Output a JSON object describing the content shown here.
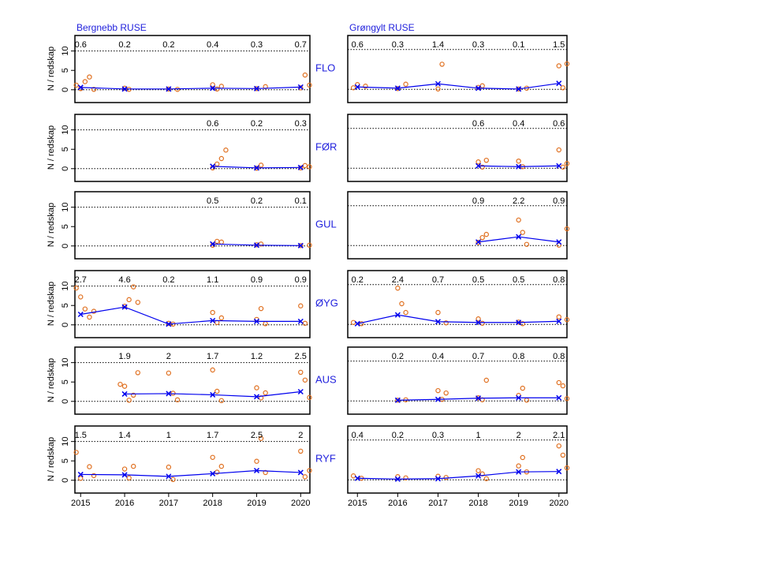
{
  "chart_data": [
    {
      "type": "line",
      "title": "Bergnebb RUSE",
      "row_label": "FLO",
      "ylabel": "N / redskap",
      "xlim": [
        2014.87,
        2020.21
      ],
      "ylim": [
        -3.3,
        14
      ],
      "yticks": [
        0,
        5,
        10
      ],
      "ref_lines": [
        0,
        10
      ],
      "color": "#0000ee",
      "x": [
        2015,
        2016,
        2017,
        2018,
        2019,
        2020
      ],
      "values": [
        0.6,
        0.2,
        0.2,
        0.4,
        0.3,
        0.7
      ],
      "points": {
        "color": "#e07020",
        "x": [
          2014.9,
          2015.0,
          2015.1,
          2015.2,
          2015.3,
          2016.0,
          2016.1,
          2017.0,
          2017.2,
          2018.0,
          2018.1,
          2018.2,
          2019.0,
          2019.2,
          2020.0,
          2020.1,
          2020.2
        ],
        "y": [
          1.2,
          0.3,
          2.1,
          3.3,
          0.1,
          0.4,
          0.1,
          0.2,
          0.1,
          1.3,
          0.2,
          0.9,
          0.3,
          0.8,
          0.5,
          3.8,
          1.2
        ]
      }
    },
    {
      "type": "line",
      "row_label": "FØR",
      "ylabel": "N / redskap",
      "xlim": [
        2014.87,
        2020.21
      ],
      "ylim": [
        -3.3,
        14
      ],
      "yticks": [
        0,
        5,
        10
      ],
      "ref_lines": [
        0,
        10
      ],
      "color": "#0000ee",
      "x": [
        2015,
        2016,
        2017,
        2018,
        2019,
        2020
      ],
      "values": [
        null,
        null,
        null,
        0.6,
        0.2,
        0.3
      ],
      "points": {
        "color": "#e07020",
        "x": [
          2018.0,
          2018.1,
          2018.2,
          2018.3,
          2019.0,
          2019.1,
          2020.0,
          2020.1,
          2020.2
        ],
        "y": [
          0.2,
          1.2,
          2.6,
          4.8,
          0.1,
          0.9,
          0.2,
          0.8,
          0.5
        ]
      }
    },
    {
      "type": "line",
      "row_label": "GUL",
      "ylabel": "N / redskap",
      "xlim": [
        2014.87,
        2020.21
      ],
      "ylim": [
        -3.3,
        14
      ],
      "yticks": [
        0,
        5,
        10
      ],
      "ref_lines": [
        0,
        10
      ],
      "color": "#0000ee",
      "x": [
        2015,
        2016,
        2017,
        2018,
        2019,
        2020
      ],
      "values": [
        null,
        null,
        null,
        0.5,
        0.2,
        0.1
      ],
      "points": {
        "color": "#e07020",
        "x": [
          2018.0,
          2018.1,
          2018.2,
          2019.0,
          2019.1,
          2020.0,
          2020.2
        ],
        "y": [
          0.2,
          1.2,
          1.0,
          0.3,
          0.5,
          0.1,
          0.2
        ]
      }
    },
    {
      "type": "line",
      "row_label": "ØYG",
      "ylabel": "N / redskap",
      "xlim": [
        2014.87,
        2020.21
      ],
      "ylim": [
        -3.3,
        14
      ],
      "yticks": [
        0,
        5,
        10
      ],
      "ref_lines": [
        0,
        10
      ],
      "color": "#0000ee",
      "x": [
        2015,
        2016,
        2017,
        2018,
        2019,
        2020
      ],
      "values": [
        2.7,
        4.6,
        0.2,
        1.1,
        0.9,
        0.9
      ],
      "points": {
        "color": "#e07020",
        "x": [
          2014.9,
          2015.0,
          2015.1,
          2015.2,
          2015.3,
          2016.0,
          2016.1,
          2016.2,
          2016.3,
          2017.0,
          2017.1,
          2018.0,
          2018.1,
          2018.2,
          2019.0,
          2019.1,
          2019.2,
          2020.0,
          2020.1
        ],
        "y": [
          9.5,
          7.2,
          4.1,
          2.0,
          3.5,
          4.8,
          6.5,
          9.8,
          5.8,
          0.4,
          0.2,
          3.2,
          0.6,
          1.8,
          1.4,
          4.2,
          0.3,
          4.9,
          0.4
        ]
      }
    },
    {
      "type": "line",
      "row_label": "AUS",
      "ylabel": "N / redskap",
      "xlim": [
        2014.87,
        2020.21
      ],
      "ylim": [
        -3.3,
        14
      ],
      "yticks": [
        0,
        5,
        10
      ],
      "ref_lines": [
        0,
        10
      ],
      "color": "#0000ee",
      "x": [
        2015,
        2016,
        2017,
        2018,
        2019,
        2020
      ],
      "values": [
        null,
        1.9,
        2,
        1.7,
        1.2,
        2.5
      ],
      "points": {
        "color": "#e07020",
        "x": [
          2015.9,
          2016.0,
          2016.1,
          2016.2,
          2016.3,
          2017.0,
          2017.1,
          2017.2,
          2018.0,
          2018.1,
          2018.2,
          2019.0,
          2019.1,
          2019.2,
          2020.0,
          2020.1,
          2020.2
        ],
        "y": [
          4.4,
          3.9,
          0.3,
          1.6,
          7.4,
          7.3,
          2.1,
          0.4,
          8.1,
          2.6,
          0.2,
          3.5,
          0.9,
          2.2,
          7.5,
          5.5,
          1.0
        ]
      }
    },
    {
      "type": "line",
      "row_label": "RYF",
      "ylabel": "N / redskap",
      "xlim": [
        2014.87,
        2020.21
      ],
      "ylim": [
        -3.3,
        14
      ],
      "yticks": [
        0,
        5,
        10
      ],
      "xticks": [
        2015,
        2016,
        2017,
        2018,
        2019,
        2020
      ],
      "ref_lines": [
        0,
        10
      ],
      "color": "#0000ee",
      "x": [
        2015,
        2016,
        2017,
        2018,
        2019,
        2020
      ],
      "values": [
        1.5,
        1.4,
        1,
        1.7,
        2.5,
        2
      ],
      "points": {
        "color": "#e07020",
        "x": [
          2014.9,
          2015.0,
          2015.2,
          2015.3,
          2016.0,
          2016.1,
          2016.2,
          2017.0,
          2017.1,
          2018.0,
          2018.1,
          2018.2,
          2019.0,
          2019.1,
          2019.2,
          2020.0,
          2020.1,
          2020.2
        ],
        "y": [
          7.2,
          0.5,
          3.5,
          1.2,
          2.9,
          0.6,
          3.6,
          3.4,
          0.2,
          5.9,
          2.1,
          3.6,
          4.9,
          10.8,
          2.0,
          7.5,
          0.9,
          2.5
        ]
      }
    },
    {
      "type": "line",
      "title": "Grøngylt RUSE",
      "xlim": [
        2014.76,
        2020.2
      ],
      "ylim": [
        -3.3,
        13.5
      ],
      "ref_lines": [
        0,
        10
      ],
      "color": "#0000ee",
      "x": [
        2015,
        2016,
        2017,
        2018,
        2019,
        2020
      ],
      "values": [
        0.6,
        0.3,
        1.4,
        0.3,
        0.1,
        1.5
      ],
      "points": {
        "color": "#e07020",
        "x": [
          2014.9,
          2015.0,
          2015.2,
          2016.0,
          2016.2,
          2017.0,
          2017.1,
          2018.0,
          2018.1,
          2019.0,
          2019.2,
          2020.0,
          2020.1,
          2020.2
        ],
        "y": [
          0.4,
          1.2,
          0.8,
          0.2,
          1.3,
          0.1,
          6.3,
          0.5,
          0.9,
          0.1,
          0.3,
          5.9,
          0.4,
          6.4
        ]
      }
    },
    {
      "type": "line",
      "xlim": [
        2014.76,
        2020.2
      ],
      "ylim": [
        -3.3,
        13.5
      ],
      "ref_lines": [
        0,
        10
      ],
      "color": "#0000ee",
      "x": [
        2015,
        2016,
        2017,
        2018,
        2019,
        2020
      ],
      "values": [
        null,
        null,
        null,
        0.6,
        0.4,
        0.6
      ],
      "points": {
        "color": "#e07020",
        "x": [
          2018.0,
          2018.1,
          2018.2,
          2019.0,
          2019.1,
          2020.0,
          2020.1,
          2020.2
        ],
        "y": [
          1.6,
          0.3,
          2.0,
          1.8,
          0.4,
          4.6,
          0.3,
          1.2
        ]
      }
    },
    {
      "type": "line",
      "xlim": [
        2014.76,
        2020.2
      ],
      "ylim": [
        -3.3,
        13.5
      ],
      "ref_lines": [
        0,
        10
      ],
      "color": "#0000ee",
      "x": [
        2015,
        2016,
        2017,
        2018,
        2019,
        2020
      ],
      "values": [
        null,
        null,
        null,
        0.9,
        2.2,
        0.9
      ],
      "points": {
        "color": "#e07020",
        "x": [
          2018.0,
          2018.1,
          2018.2,
          2019.0,
          2019.1,
          2019.2,
          2020.0,
          2020.2
        ],
        "y": [
          0.8,
          2.0,
          2.8,
          6.4,
          3.3,
          0.3,
          0.1,
          4.2
        ]
      }
    },
    {
      "type": "line",
      "xlim": [
        2014.76,
        2020.2
      ],
      "ylim": [
        -3.3,
        13.5
      ],
      "ref_lines": [
        0,
        10
      ],
      "color": "#0000ee",
      "x": [
        2015,
        2016,
        2017,
        2018,
        2019,
        2020
      ],
      "values": [
        0.2,
        2.4,
        0.7,
        0.5,
        0.5,
        0.8
      ],
      "points": {
        "color": "#e07020",
        "x": [
          2014.9,
          2015.1,
          2016.0,
          2016.1,
          2016.2,
          2017.0,
          2017.2,
          2018.0,
          2018.1,
          2019.0,
          2019.1,
          2020.0,
          2020.2
        ],
        "y": [
          0.5,
          0.2,
          9.1,
          5.2,
          3.0,
          3.0,
          0.4,
          1.4,
          0.3,
          0.6,
          0.2,
          1.9,
          1.2
        ]
      }
    },
    {
      "type": "line",
      "xlim": [
        2014.76,
        2020.2
      ],
      "ylim": [
        -3.3,
        13.5
      ],
      "ref_lines": [
        0,
        10
      ],
      "color": "#0000ee",
      "x": [
        2015,
        2016,
        2017,
        2018,
        2019,
        2020
      ],
      "values": [
        null,
        0.2,
        0.4,
        0.7,
        0.8,
        0.8
      ],
      "points": {
        "color": "#e07020",
        "x": [
          2016.0,
          2016.2,
          2017.0,
          2017.1,
          2017.2,
          2018.0,
          2018.1,
          2018.2,
          2019.0,
          2019.1,
          2019.2,
          2020.0,
          2020.1,
          2020.2
        ],
        "y": [
          0.2,
          0.3,
          2.6,
          0.4,
          2.0,
          0.8,
          0.3,
          5.2,
          1.4,
          3.2,
          0.2,
          4.6,
          3.8,
          0.6
        ]
      }
    },
    {
      "type": "line",
      "xlim": [
        2014.76,
        2020.2
      ],
      "ylim": [
        -3.3,
        13.5
      ],
      "xticks": [
        2015,
        2016,
        2017,
        2018,
        2019,
        2020
      ],
      "ref_lines": [
        0,
        10
      ],
      "color": "#0000ee",
      "x": [
        2015,
        2016,
        2017,
        2018,
        2019,
        2020
      ],
      "values": [
        0.4,
        0.2,
        0.3,
        1,
        2,
        2.1
      ],
      "points": {
        "color": "#e07020",
        "x": [
          2014.9,
          2015.1,
          2016.0,
          2016.2,
          2017.0,
          2017.2,
          2018.0,
          2018.1,
          2018.2,
          2019.0,
          2019.1,
          2019.2,
          2020.0,
          2020.1,
          2020.2
        ],
        "y": [
          1.0,
          0.4,
          0.8,
          0.5,
          0.9,
          0.6,
          2.3,
          1.5,
          0.3,
          3.5,
          5.6,
          2.0,
          8.5,
          6.2,
          3.0
        ]
      }
    }
  ]
}
